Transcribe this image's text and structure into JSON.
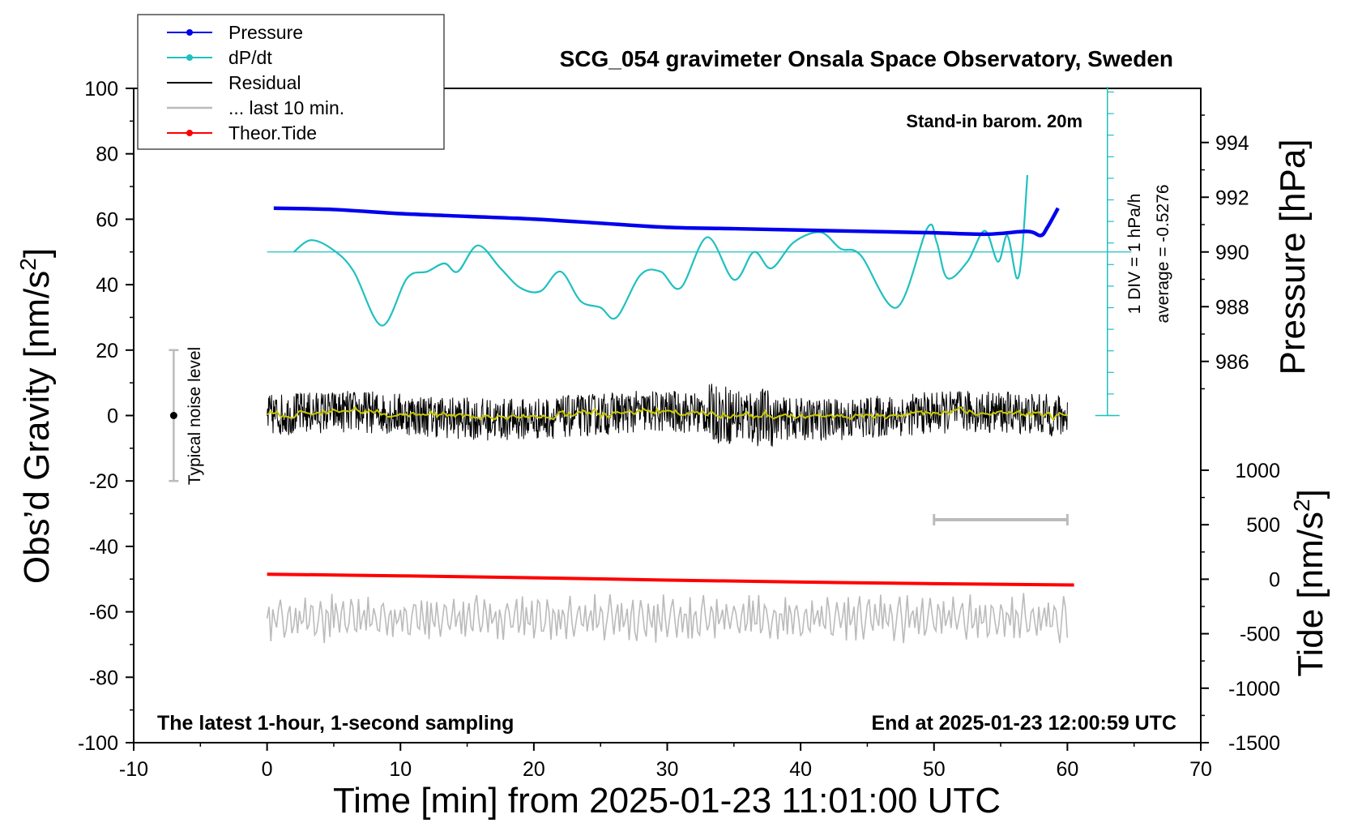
{
  "chart_data": {
    "type": "line",
    "title": "SCG_054 gravimeter Onsala Space Observatory, Sweden",
    "xlabel": "Time [min] from 2025-01-23 11:01:00 UTC",
    "ylabel_main": "Obs’d Gravity [nm/s",
    "ylabel_sup": "2",
    "ylabel_main_close": "]",
    "ylabel_pressure": "Pressure [hPa]",
    "ylabel_tide": "Tide [nm/s",
    "ylabel_tide_sup": "2",
    "ylabel_tide_close": "]",
    "xlim": [
      -10,
      70
    ],
    "ylim": [
      -100,
      100
    ],
    "pressure_ylim": [
      984,
      996
    ],
    "tide_ylim": [
      -1500,
      1000
    ],
    "xticks": [
      "-10",
      "0",
      "10",
      "20",
      "30",
      "40",
      "50",
      "60",
      "70"
    ],
    "yticks": [
      "100",
      "80",
      "60",
      "40",
      "20",
      "0",
      "-20",
      "-40",
      "-60",
      "-80",
      "-100"
    ],
    "pressure_ticks": [
      "994",
      "992",
      "990",
      "988",
      "986"
    ],
    "tide_ticks": [
      "1000",
      "500",
      "0",
      "-500",
      "-1000",
      "-1500"
    ],
    "legend": [
      {
        "name": "Pressure",
        "color": "#0000ee",
        "marker": true
      },
      {
        "name": "dP/dt",
        "color": "#20c0c0",
        "marker": true
      },
      {
        "name": "Residual",
        "color": "#000000",
        "marker": false
      },
      {
        "name": "... last 10 min.",
        "color": "#bbbbbb",
        "marker": false
      },
      {
        "name": "Theor.Tide",
        "color": "#ff0000",
        "marker": true
      }
    ],
    "annotations": {
      "barometer": "Stand-in barom. 20m",
      "latest": "The latest 1-hour, 1-second sampling",
      "end": "End at 2025-01-23 12:00:59 UTC",
      "noise": "Typical noise level",
      "div": "1 DIV = 1 hPa/h",
      "average": "average = -0.5276"
    },
    "series": [
      {
        "name": "Pressure",
        "color": "#0000ee",
        "units": "hPa",
        "x": [
          0.5,
          5,
          10,
          15,
          20,
          25,
          30,
          35,
          40,
          45,
          50,
          54,
          57,
          58,
          58.5,
          59.3
        ],
        "y": [
          991.6,
          991.55,
          991.4,
          991.3,
          991.2,
          991.05,
          990.9,
          990.85,
          990.8,
          990.75,
          990.7,
          990.65,
          990.75,
          990.6,
          990.9,
          991.6
        ]
      },
      {
        "name": "dP/dt",
        "color": "#20c0c0",
        "units": "nm/s2 (plot scale)",
        "x": [
          2.0,
          3.3,
          5.0,
          6.5,
          8.6,
          10.5,
          12.0,
          13.3,
          14.3,
          15.8,
          17.5,
          19.0,
          20.5,
          22.0,
          23.5,
          25.0,
          26.2,
          28.0,
          29.5,
          31.0,
          33.0,
          35.0,
          36.5,
          37.8,
          39.5,
          41.5,
          43.0,
          44.5,
          47.2,
          49.5,
          50.2,
          51.0,
          52.5,
          53.8,
          54.8,
          55.5,
          56.2,
          56.6,
          57.0
        ],
        "y": [
          50,
          53.6,
          50.5,
          44.0,
          27.5,
          42.0,
          44.0,
          46.5,
          44.0,
          52.0,
          45.0,
          39.0,
          38.0,
          44.0,
          35.0,
          33.0,
          30.0,
          43.0,
          44.0,
          39.0,
          54.5,
          41.5,
          50.0,
          45.0,
          53.0,
          56.0,
          51.0,
          49.0,
          33.0,
          57.3,
          53.0,
          42.0,
          47.0,
          56.5,
          47.0,
          55.0,
          42.0,
          50.0,
          73.5
        ]
      },
      {
        "name": "Residual",
        "color": "#000000",
        "units": "nm/s2",
        "x": [
          0,
          60
        ],
        "y": [
          0,
          0
        ],
        "envelope": [
          -12,
          13
        ]
      },
      {
        "name": "... last 10 min.",
        "color": "#bbbbbb",
        "units": "nm/s2",
        "x": [
          0,
          60
        ],
        "y": [
          -62,
          -62
        ],
        "envelope": [
          -70,
          -54
        ]
      },
      {
        "name": "Theor.Tide",
        "color": "#ff0000",
        "units": "nm/s2",
        "x": [
          0,
          10,
          20,
          30,
          40,
          50,
          60.5
        ],
        "y": [
          -48.5,
          -49.0,
          -49.6,
          -50.3,
          -50.9,
          -51.4,
          -51.8
        ]
      }
    ],
    "noise_bar": {
      "center": 0,
      "half_range": 20
    },
    "dpdt_reference_y": 50
  }
}
